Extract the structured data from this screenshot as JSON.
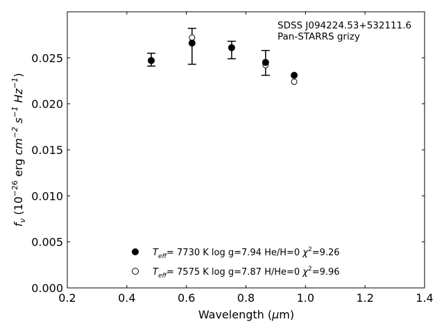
{
  "chart_data": {
    "type": "scatter",
    "xlabel_text": "Wavelength (",
    "xlabel_unit_symbol": "μ",
    "xlabel_unit_rest": "m)",
    "ylabel_f": "f",
    "ylabel_nu": "ν",
    "ylabel_open": " (10",
    "ylabel_exp1": "−26",
    "ylabel_erg": " erg ",
    "ylabel_cm": "cm",
    "ylabel_exp2": "−2",
    "ylabel_s": " s",
    "ylabel_exp3": "−1",
    "ylabel_hz": " Hz",
    "ylabel_exp4": "−1",
    "ylabel_close": ")",
    "xlim": [
      0.2,
      1.4
    ],
    "ylim": [
      0.0,
      0.03
    ],
    "x_ticks": [
      "0.2",
      "0.4",
      "0.6",
      "0.8",
      "1.0",
      "1.2",
      "1.4"
    ],
    "y_ticks": [
      "0.000",
      "0.005",
      "0.010",
      "0.015",
      "0.020",
      "0.025"
    ],
    "annotation_line1": "SDSS J094224.53+532111.6",
    "annotation_line2": "Pan-STARRS grizy",
    "observed": {
      "marker": "filled-circle",
      "x": [
        0.482,
        0.619,
        0.752,
        0.866,
        0.962
      ],
      "y": [
        0.0247,
        0.0266,
        0.0261,
        0.0245,
        0.0231
      ],
      "yerr_low": [
        0.0241,
        0.0243,
        0.0249,
        0.0231,
        0.0231
      ],
      "yerr_high": [
        0.0255,
        0.0282,
        0.0268,
        0.0258,
        0.0231
      ]
    },
    "series": [
      {
        "marker": "filled-circle",
        "legend_t": "T",
        "legend_eff": "eff",
        "legend_rest": "=  7730 K  log g=7.94  He/H=0  ",
        "legend_chi": "χ",
        "legend_chi_exp": "2",
        "legend_chi_val": "=9.26",
        "x": [
          0.482,
          0.619,
          0.752,
          0.866,
          0.962
        ],
        "y": [
          0.0247,
          0.0266,
          0.0261,
          0.0245,
          0.0231
        ]
      },
      {
        "marker": "open-circle",
        "legend_t": "T",
        "legend_eff": "eff",
        "legend_rest": "=  7575 K  log g=7.87  H/He=0  ",
        "legend_chi": "χ",
        "legend_chi_exp": "2",
        "legend_chi_val": "=9.96",
        "x": [
          0.482,
          0.619,
          0.752,
          0.866,
          0.962
        ],
        "y": [
          0.0247,
          0.0272,
          0.0261,
          0.0242,
          0.0224
        ]
      }
    ],
    "legend_position": "lower-center",
    "grid": false
  }
}
